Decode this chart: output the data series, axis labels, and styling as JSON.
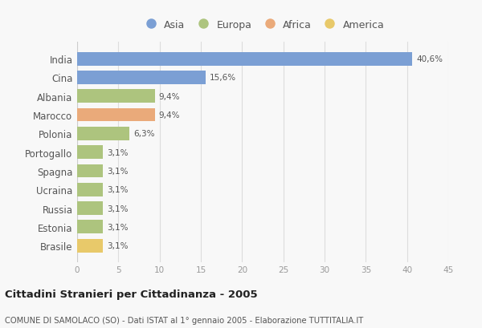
{
  "categories": [
    "India",
    "Cina",
    "Albania",
    "Marocco",
    "Polonia",
    "Portogallo",
    "Spagna",
    "Ucraina",
    "Russia",
    "Estonia",
    "Brasile"
  ],
  "values": [
    40.6,
    15.6,
    9.4,
    9.4,
    6.3,
    3.1,
    3.1,
    3.1,
    3.1,
    3.1,
    3.1
  ],
  "labels": [
    "40,6%",
    "15,6%",
    "9,4%",
    "9,4%",
    "6,3%",
    "3,1%",
    "3,1%",
    "3,1%",
    "3,1%",
    "3,1%",
    "3,1%"
  ],
  "colors": [
    "#7b9fd4",
    "#7b9fd4",
    "#adc47e",
    "#eaaa7a",
    "#adc47e",
    "#adc47e",
    "#adc47e",
    "#adc47e",
    "#adc47e",
    "#adc47e",
    "#e8c96a"
  ],
  "legend_labels": [
    "Asia",
    "Europa",
    "Africa",
    "America"
  ],
  "legend_colors": [
    "#7b9fd4",
    "#adc47e",
    "#eaaa7a",
    "#e8c96a"
  ],
  "xlim": [
    0,
    45
  ],
  "xticks": [
    0,
    5,
    10,
    15,
    20,
    25,
    30,
    35,
    40,
    45
  ],
  "title": "Cittadini Stranieri per Cittadinanza - 2005",
  "subtitle": "COMUNE DI SAMOLACO (SO) - Dati ISTAT al 1° gennaio 2005 - Elaborazione TUTTITALIA.IT",
  "bg_color": "#f8f8f8",
  "grid_color": "#dddddd",
  "bar_height": 0.72
}
